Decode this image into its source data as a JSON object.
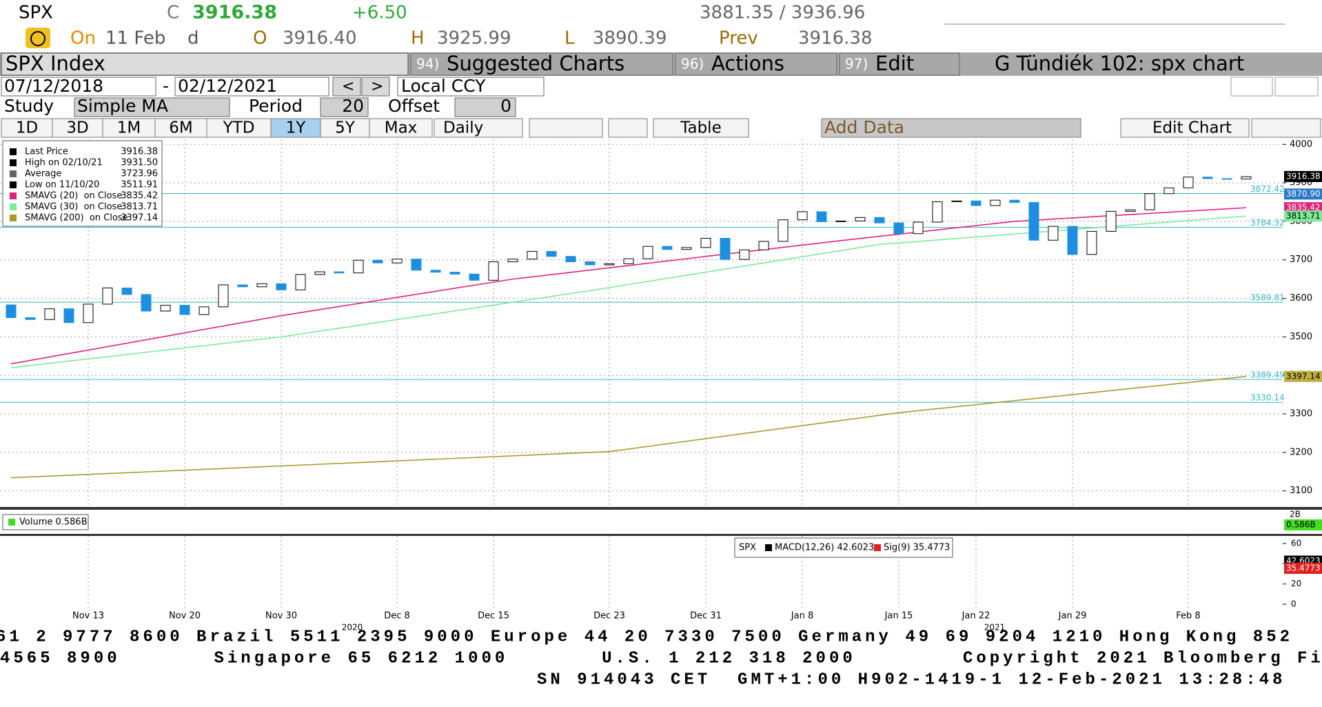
{
  "header": {
    "ticker": "SPX",
    "close_label": "C",
    "close": "3916.38",
    "change": "+6.50",
    "range": "3881.35 / 3936.96",
    "on": "On",
    "date": "11 Feb",
    "freq": "d",
    "open_label": "O",
    "open": "3916.40",
    "high_label": "H",
    "high": "3925.99",
    "low_label": "L",
    "low": "3890.39",
    "prev_label": "Prev",
    "prev": "3916.38"
  },
  "toolbar": {
    "security": "SPX Index",
    "menus": [
      {
        "num": "94)",
        "label": "Suggested Charts"
      },
      {
        "num": "96)",
        "label": "Actions"
      },
      {
        "num": "97)",
        "label": "Edit"
      }
    ],
    "title": "G Tündiék 102: spx chart"
  },
  "controls": {
    "start_date": "07/12/2018",
    "end_date": "02/12/2021",
    "prev": "<",
    "next": ">",
    "currency": "Local CCY",
    "study_label": "Study",
    "study": "Simple MA",
    "period_label": "Period",
    "period": "20",
    "offset_label": "Offset",
    "offset": "0",
    "ranges": [
      "1D",
      "3D",
      "1M",
      "6M",
      "YTD",
      "1Y",
      "5Y",
      "Max"
    ],
    "frequency": "Daily",
    "table": "Table",
    "add_data": "Add Data",
    "edit_chart": "Edit Chart"
  },
  "chart_data": {
    "type": "candlestick",
    "categories": [
      null,
      null,
      null,
      null,
      "Nov 13",
      null,
      null,
      null,
      null,
      "Nov 20",
      null,
      null,
      null,
      null,
      "Nov 30",
      null,
      null,
      null,
      null,
      null,
      "Dec 8",
      null,
      null,
      null,
      null,
      "Dec 15",
      null,
      null,
      null,
      null,
      null,
      "Dec 23",
      null,
      null,
      null,
      null,
      "Dec 31",
      null,
      null,
      null,
      null,
      "Jan 8",
      null,
      null,
      null,
      null,
      "Jan 15",
      null,
      null,
      null,
      "Jan 22",
      null,
      null,
      null,
      null,
      "Jan 29",
      null,
      null,
      null,
      null,
      null,
      "Feb 8",
      null,
      null,
      null
    ],
    "open": [
      3583,
      3550,
      3545,
      3573,
      3537,
      3585,
      3627,
      3610,
      3567,
      3582,
      3558,
      3578,
      3635,
      3630,
      3638,
      3622,
      3662,
      3669,
      3666,
      3699,
      3692,
      3702,
      3673,
      3668,
      3663,
      3647,
      3695,
      3702,
      3722,
      3709,
      3695,
      3687,
      3690,
      3703,
      3735,
      3727,
      3732,
      3756,
      3701,
      3726,
      3748,
      3804,
      3825,
      3799,
      3801,
      3810,
      3796,
      3768,
      3798,
      3851,
      3853,
      3841,
      3855,
      3849,
      3751,
      3787,
      3714,
      3774,
      3826,
      3830,
      3872,
      3887,
      3915,
      3911,
      3910
    ],
    "close": [
      3550,
      3545,
      3573,
      3537,
      3585,
      3627,
      3610,
      3567,
      3582,
      3558,
      3578,
      3635,
      3630,
      3638,
      3622,
      3662,
      3669,
      3666,
      3699,
      3692,
      3702,
      3673,
      3668,
      3663,
      3647,
      3695,
      3702,
      3722,
      3709,
      3695,
      3687,
      3690,
      3703,
      3735,
      3727,
      3732,
      3756,
      3701,
      3726,
      3748,
      3804,
      3825,
      3799,
      3801,
      3810,
      3796,
      3768,
      3798,
      3851,
      3853,
      3841,
      3855,
      3849,
      3751,
      3787,
      3714,
      3774,
      3826,
      3830,
      3872,
      3887,
      3915,
      3911,
      3910,
      3916
    ],
    "up_color": "#ffffff",
    "down_color": "#1e8fe0",
    "ylim": [
      3060,
      4013
    ],
    "yticks": [
      3100,
      3200,
      3300,
      3400,
      3500,
      3600,
      3700,
      3800,
      3900,
      4000
    ],
    "grid": true,
    "series": [
      {
        "name": "Last Price",
        "legend_value": "3916.38",
        "color": "#000000"
      },
      {
        "name": "High on 02/10/21",
        "legend_value": "3931.50",
        "color": "#000000"
      },
      {
        "name": "Average",
        "legend_value": "3723.96",
        "color": "#666666"
      },
      {
        "name": "Low on 11/10/20",
        "legend_value": "3511.91",
        "color": "#000000"
      },
      {
        "name": "SMAVG (20)  on Close",
        "legend_value": "3835.42",
        "color": "#e0207a",
        "x": [
          0,
          14,
          26,
          43,
          52,
          64
        ],
        "values": [
          3430,
          3555,
          3650,
          3750,
          3800,
          3835.42
        ]
      },
      {
        "name": "SMAVG (30)  on Close",
        "legend_value": "3813.71",
        "color": "#7fe89a",
        "x": [
          0,
          14,
          30,
          45,
          64
        ],
        "values": [
          3420,
          3500,
          3620,
          3740,
          3813.71
        ]
      },
      {
        "name": "SMAVG (200)  on Close",
        "legend_value": "3397.14",
        "color": "#a89a2a",
        "x": [
          0,
          31,
          46,
          64
        ],
        "values": [
          3134,
          3202,
          3303,
          3397.14
        ]
      }
    ],
    "levels": [
      3872.42,
      3784.32,
      3589.81,
      3389.49,
      3330.14
    ],
    "level_color": "#38b4cc",
    "tags": [
      {
        "value": 3916.38,
        "color": "#000000",
        "text_color": "#ffffff"
      },
      {
        "value": 3870.9,
        "label": "3870.90",
        "color": "#2a78c8",
        "text_color": "#ffffff"
      },
      {
        "value": 3835.42,
        "color": "#e0207a",
        "text_color": "#ffffff"
      },
      {
        "value": 3813.71,
        "color": "#7fe89a",
        "text_color": "#000000"
      },
      {
        "value": 3397.14,
        "color": "#c0b040",
        "text_color": "#000000"
      }
    ]
  },
  "volume": {
    "legend": "Volume 0.586B",
    "tick": "2B",
    "tag": "0.586B"
  },
  "macd": {
    "ticker": "SPX",
    "macd": "MACD(12,26) 42.6023",
    "signal": "Sig(9) 35.4773",
    "ylim": [
      -3.4,
      67.5
    ],
    "yticks": [
      0,
      20,
      40,
      60
    ],
    "tags": [
      {
        "value": 42.6023,
        "color": "#000000"
      },
      {
        "value": 35.4773,
        "color": "#e02020"
      }
    ]
  },
  "years": [
    "2020",
    "2021"
  ],
  "footer": [
    "61 2 9777 8600 Brazil 5511 2395 9000 Europe 44 20 7330 7500 Germany 49 69 9204 1210 Hong Kong 852",
    "4565 8900       Singapore 65 6212 1000       U.S. 1 212 318 2000        Copyright 2021 Bloomberg Fi",
    "SN 914043 CET  GMT+1:00 H902-1419-1 12-Feb-2021 13:28:48"
  ]
}
